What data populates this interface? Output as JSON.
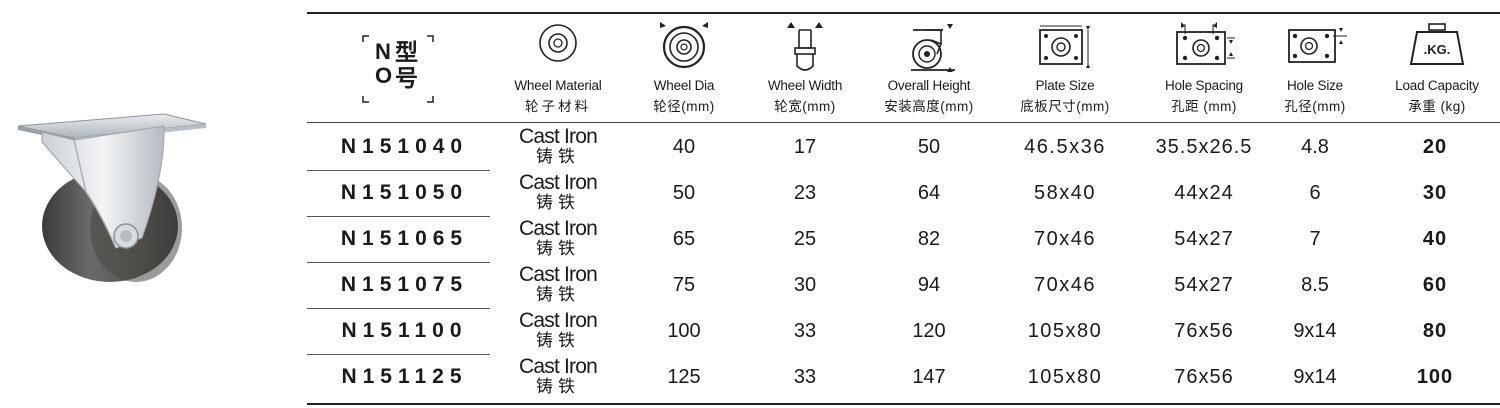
{
  "headers": {
    "model": {
      "en": "NO",
      "zh": "型号"
    },
    "material": {
      "en": "Wheel Material",
      "zh": "轮子材料"
    },
    "dia": {
      "en": "Wheel Dia",
      "zh": "轮径(mm)"
    },
    "width": {
      "en": "Wheel Width",
      "zh": "轮宽(mm)"
    },
    "height": {
      "en": "Overall Height",
      "zh": "安装高度(mm)"
    },
    "plate": {
      "en": "Plate Size",
      "zh": "底板尺寸(mm)"
    },
    "spacing": {
      "en": "Hole Spacing",
      "zh": "孔距 (mm)"
    },
    "hole": {
      "en": "Hole Size",
      "zh": "孔径(mm)"
    },
    "load": {
      "en": "Load Capacity",
      "zh": "承重 (kg)",
      "icon_text": ".KG."
    }
  },
  "rows": [
    {
      "model": "N151040",
      "material_en": "Cast Iron",
      "material_zh": "铸铁",
      "dia": "40",
      "width": "17",
      "height": "50",
      "plate": "46.5x36",
      "spacing": "35.5x26.5",
      "hole": "4.8",
      "load": "20"
    },
    {
      "model": "N151050",
      "material_en": "Cast Iron",
      "material_zh": "铸铁",
      "dia": "50",
      "width": "23",
      "height": "64",
      "plate": "58x40",
      "spacing": "44x24",
      "hole": "6",
      "load": "30"
    },
    {
      "model": "N151065",
      "material_en": "Cast Iron",
      "material_zh": "铸铁",
      "dia": "65",
      "width": "25",
      "height": "82",
      "plate": "70x46",
      "spacing": "54x27",
      "hole": "7",
      "load": "40"
    },
    {
      "model": "N151075",
      "material_en": "Cast Iron",
      "material_zh": "铸铁",
      "dia": "75",
      "width": "30",
      "height": "94",
      "plate": "70x46",
      "spacing": "54x27",
      "hole": "8.5",
      "load": "60"
    },
    {
      "model": "N151100",
      "material_en": "Cast Iron",
      "material_zh": "铸铁",
      "dia": "100",
      "width": "33",
      "height": "120",
      "plate": "105x80",
      "spacing": "76x56",
      "hole": "9x14",
      "load": "80"
    },
    {
      "model": "N151125",
      "material_en": "Cast Iron",
      "material_zh": "铸铁",
      "dia": "125",
      "width": "33",
      "height": "147",
      "plate": "105x80",
      "spacing": "76x56",
      "hole": "9x14",
      "load": "100"
    }
  ]
}
